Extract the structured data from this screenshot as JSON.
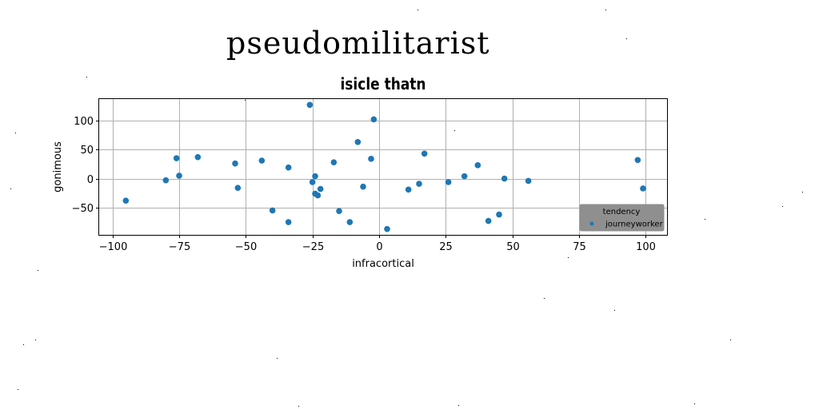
{
  "headline": "pseudomilitarist",
  "chart_data": {
    "type": "scatter",
    "title": "isicle thatn",
    "xlabel": "infracortical",
    "ylabel": "gonimous",
    "xlim": [
      -105,
      108
    ],
    "ylim": [
      -97,
      137
    ],
    "xticks": [
      -100,
      -75,
      -50,
      -25,
      0,
      25,
      50,
      75,
      100
    ],
    "yticks": [
      -50,
      0,
      50,
      100
    ],
    "grid": true,
    "legend": {
      "title": "tendency",
      "placement": "lower-right"
    },
    "series": [
      {
        "name": "journeyworker",
        "color": "#1f77b4",
        "points": [
          [
            -95,
            -38
          ],
          [
            -80,
            -3
          ],
          [
            -76,
            35
          ],
          [
            -75,
            5
          ],
          [
            -68,
            37
          ],
          [
            -54,
            26
          ],
          [
            -53,
            -16
          ],
          [
            -44,
            31
          ],
          [
            -40,
            -55
          ],
          [
            -34,
            19
          ],
          [
            -34,
            -75
          ],
          [
            -26,
            127
          ],
          [
            -25,
            -6
          ],
          [
            -24,
            4
          ],
          [
            -24,
            -26
          ],
          [
            -23,
            -29
          ],
          [
            -22,
            -18
          ],
          [
            -17,
            28
          ],
          [
            -15,
            -56
          ],
          [
            -11,
            -75
          ],
          [
            -8,
            63
          ],
          [
            -6,
            -14
          ],
          [
            -3,
            34
          ],
          [
            -2,
            102
          ],
          [
            3,
            -87
          ],
          [
            11,
            -19
          ],
          [
            15,
            -9
          ],
          [
            17,
            43
          ],
          [
            26,
            -6
          ],
          [
            32,
            4
          ],
          [
            37,
            23
          ],
          [
            41,
            -73
          ],
          [
            45,
            -62
          ],
          [
            47,
            0
          ],
          [
            56,
            -4
          ],
          [
            97,
            32
          ],
          [
            99,
            -17
          ]
        ]
      }
    ]
  }
}
